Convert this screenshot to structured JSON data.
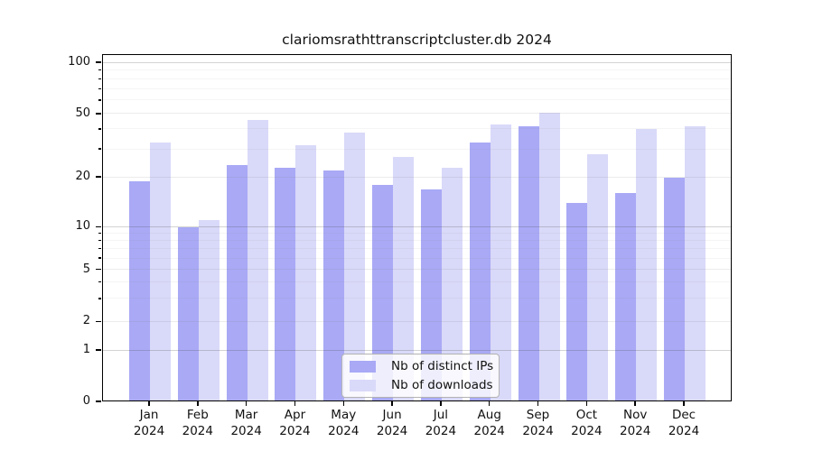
{
  "chart_data": {
    "type": "bar",
    "title": "clariomsrathttranscriptcluster.db 2024",
    "categories": [
      "Jan",
      "Feb",
      "Mar",
      "Apr",
      "May",
      "Jun",
      "Jul",
      "Aug",
      "Sep",
      "Oct",
      "Nov",
      "Dec"
    ],
    "category_year": "2024",
    "series": [
      {
        "name": "Nb of distinct IPs",
        "color": "#a9a9f6",
        "values": [
          19,
          10,
          24,
          23,
          22,
          18,
          17,
          33,
          42,
          14,
          16,
          20
        ]
      },
      {
        "name": "Nb of downloads",
        "color": "#d9d9f9",
        "values": [
          33,
          11,
          46,
          32,
          38,
          27,
          23,
          43,
          51,
          28,
          40,
          42
        ]
      }
    ],
    "xlabel": "",
    "ylabel": "",
    "y_axis": {
      "scale": "log-like",
      "ticks": [
        0,
        1,
        2,
        5,
        10,
        20,
        50,
        100
      ],
      "minor_ticks": [
        3,
        4,
        6,
        7,
        8,
        9,
        30,
        40,
        60,
        70,
        80,
        90
      ],
      "range": [
        0,
        110
      ]
    },
    "grid": true,
    "legend": {
      "position": "bottom-center",
      "entries": [
        "Nb of distinct IPs",
        "Nb of downloads"
      ]
    }
  },
  "colors": {
    "bar_distinct_ips": "#a9a9f6",
    "bar_downloads": "#d9d9f9",
    "axis": "#000000",
    "background": "#ffffff"
  }
}
